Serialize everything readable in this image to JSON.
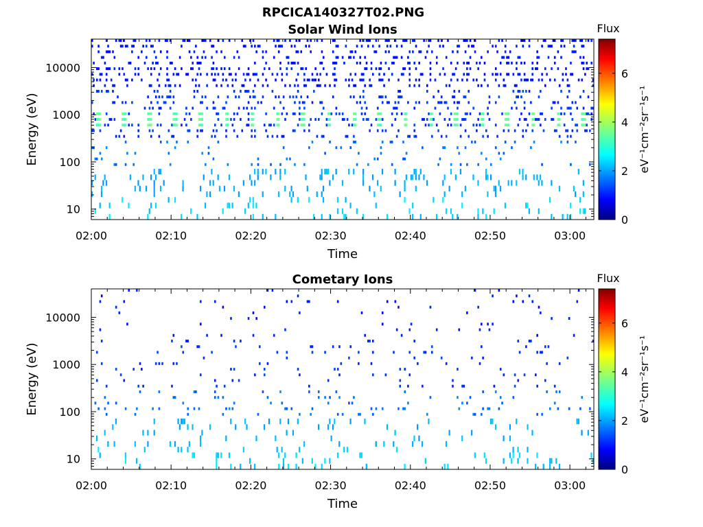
{
  "figure": {
    "title": "RPCICA140327T02.PNG"
  },
  "chart_data": [
    {
      "type": "heatmap",
      "title": "Solar Wind Ions",
      "xlabel": "Time",
      "ylabel": "Energy (eV)",
      "x_ticks": [
        "02:00",
        "02:10",
        "02:20",
        "02:30",
        "02:40",
        "02:50",
        "03:00"
      ],
      "x_range_minutes": [
        0,
        63
      ],
      "y_scale": "log",
      "y_ticks": [
        "10",
        "100",
        "1000",
        "10000"
      ],
      "y_range": [
        6,
        40000
      ],
      "colorbar": {
        "label": "Flux",
        "unit_label": "eV⁻¹cm⁻²sr⁻¹s⁻¹",
        "range": [
          0,
          7.4
        ],
        "ticks": [
          "0",
          "2",
          "4",
          "6"
        ],
        "colormap": "jet"
      },
      "features": {
        "main_band_energy_eV": 700,
        "main_band_flux": 3.5,
        "main_band_period_minutes": 3.2,
        "background_flux_range": [
          1.0,
          1.6
        ]
      }
    },
    {
      "type": "heatmap",
      "title": "Cometary Ions",
      "xlabel": "Time",
      "ylabel": "Energy (eV)",
      "x_ticks": [
        "02:00",
        "02:10",
        "02:20",
        "02:30",
        "02:40",
        "02:50",
        "03:00"
      ],
      "x_range_minutes": [
        0,
        63
      ],
      "y_scale": "log",
      "y_ticks": [
        "10",
        "100",
        "1000",
        "10000"
      ],
      "y_range": [
        6,
        40000
      ],
      "colorbar": {
        "label": "Flux",
        "unit_label": "eV⁻¹cm⁻²sr⁻¹s⁻¹",
        "range": [
          0,
          7.4
        ],
        "ticks": [
          "0",
          "2",
          "4",
          "6"
        ],
        "colormap": "jet"
      },
      "features": {
        "background_flux_range": [
          1.0,
          1.6
        ]
      }
    }
  ]
}
